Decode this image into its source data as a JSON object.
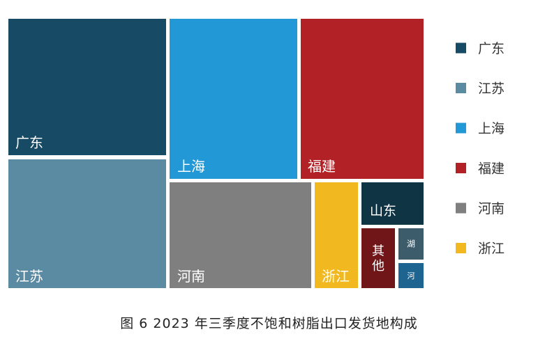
{
  "caption": "图 6  2023 年三季度不饱和树脂出口发货地构成",
  "chart_data": {
    "type": "treemap",
    "title": "",
    "legend_position": "right",
    "legend": [
      {
        "name": "广东",
        "color": "#174a65"
      },
      {
        "name": "江苏",
        "color": "#5a8ba3"
      },
      {
        "name": "上海",
        "color": "#2299d6"
      },
      {
        "name": "福建",
        "color": "#b22126"
      },
      {
        "name": "河南",
        "color": "#7f7f7f"
      },
      {
        "name": "浙江",
        "color": "#f2b81f"
      }
    ],
    "nodes": [
      {
        "name": "广东",
        "label": "广东",
        "color": "#174a65",
        "share_pct": 21.9
      },
      {
        "name": "江苏",
        "label": "江苏",
        "color": "#5a8ba3",
        "share_pct": 18.9
      },
      {
        "name": "上海",
        "label": "上海",
        "color": "#2299d6",
        "share_pct": 19.3
      },
      {
        "name": "福建",
        "label": "福建",
        "color": "#b22126",
        "share_pct": 17.6
      },
      {
        "name": "河南",
        "label": "河南",
        "color": "#7f7f7f",
        "share_pct": 12.3
      },
      {
        "name": "浙江",
        "label": "浙江",
        "color": "#f2b81f",
        "share_pct": 3.6
      },
      {
        "name": "山东",
        "label": "山东",
        "color": "#0f3444",
        "share_pct": 3.5
      },
      {
        "name": "其他",
        "label": "其他",
        "color": "#701619",
        "share_pct": 2.0
      },
      {
        "name": "湖",
        "label": "湖",
        "color": "#3c5b6b",
        "share_pct": 0.5
      },
      {
        "name": "河",
        "label": "河",
        "color": "#1d6590",
        "share_pct": 0.4
      }
    ]
  }
}
